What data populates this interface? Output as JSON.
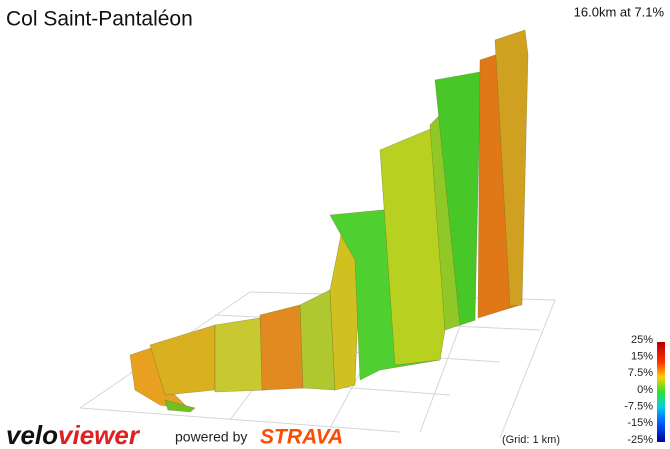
{
  "header": {
    "title": "Col Saint-Pantaléon",
    "stats": "16.0km at 7.1%"
  },
  "legend": {
    "labels": [
      "25%",
      "15%",
      "7.5%",
      "0%",
      "-7.5%",
      "-15%",
      "-25%"
    ],
    "grid_note": "(Grid: 1 km)"
  },
  "footer": {
    "logo_velo": "velo",
    "logo_viewer": "viewer",
    "powered_by": "powered by",
    "strava": "STRAVA"
  }
}
